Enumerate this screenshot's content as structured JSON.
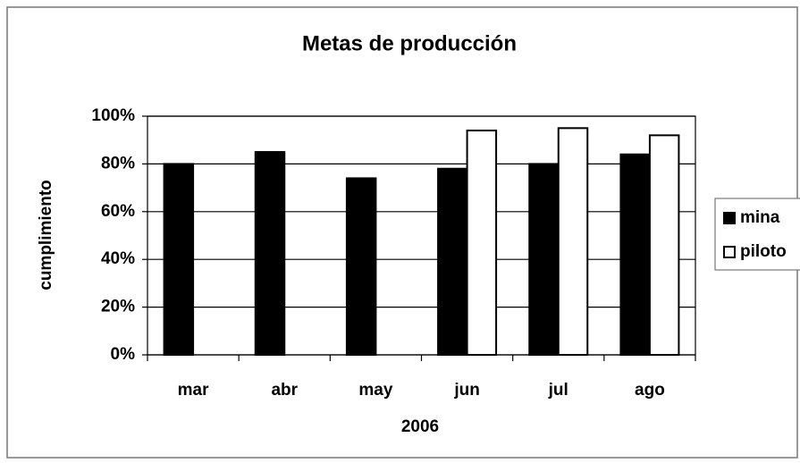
{
  "chart_data": {
    "type": "bar",
    "title": "Metas de producción",
    "xlabel": "2006",
    "ylabel": "cumplimiento",
    "categories": [
      "mar",
      "abr",
      "may",
      "jun",
      "jul",
      "ago"
    ],
    "series": [
      {
        "name": "mina",
        "color": "#000000",
        "values": [
          80,
          85,
          74,
          78,
          80,
          84
        ]
      },
      {
        "name": "piloto",
        "color": "#ffffff",
        "values": [
          null,
          null,
          null,
          94,
          95,
          92
        ]
      }
    ],
    "ylim": [
      0,
      100
    ],
    "yticks": [
      {
        "value": 0,
        "label": "0%"
      },
      {
        "value": 20,
        "label": "20%"
      },
      {
        "value": 40,
        "label": "40%"
      },
      {
        "value": 60,
        "label": "60%"
      },
      {
        "value": 80,
        "label": "80%"
      },
      {
        "value": 100,
        "label": "100%"
      }
    ],
    "grid": true,
    "legend": "right"
  }
}
